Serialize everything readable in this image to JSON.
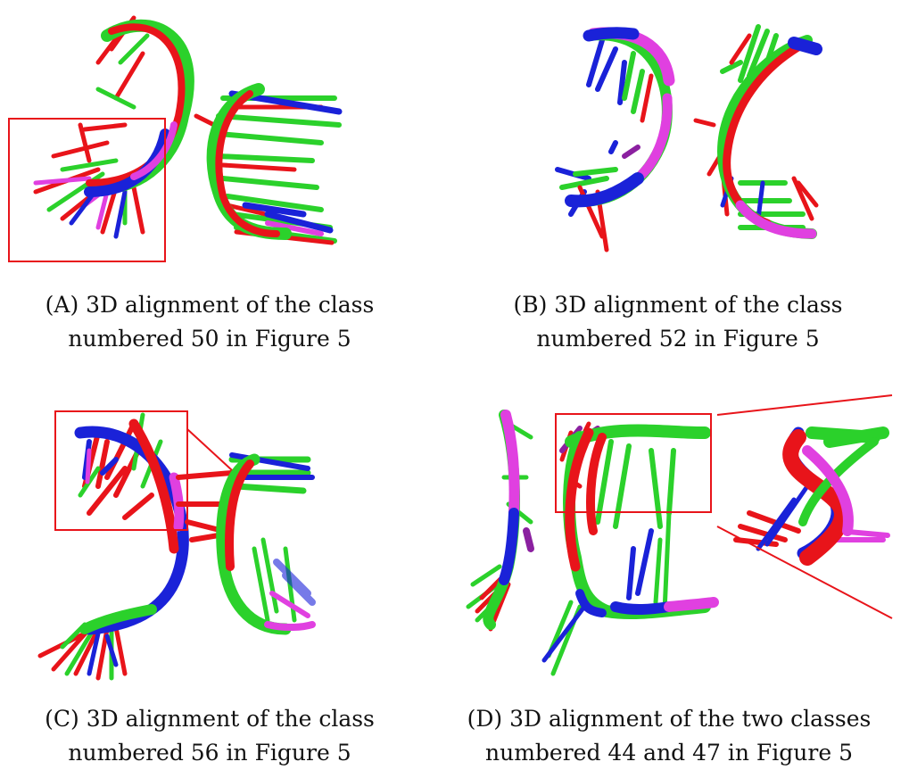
{
  "figure": {
    "panels": [
      {
        "id": "A",
        "caption_line1": "(A) 3D alignment of the class",
        "caption_line2": "numbered 50 in Figure 5"
      },
      {
        "id": "B",
        "caption_line1": "(B) 3D alignment of the class",
        "caption_line2": "numbered 52 in Figure 5"
      },
      {
        "id": "C",
        "caption_line1": "(C) 3D alignment of the class",
        "caption_line2": "numbered 56 in Figure 5"
      },
      {
        "id": "D",
        "caption_line1": "(D) 3D alignment of the two classes",
        "caption_line2": "numbered 44 and 47 in Figure 5"
      }
    ],
    "colors": {
      "red": "#e8141a",
      "green": "#2bd12b",
      "blue": "#1a22d8",
      "magenta": "#e040e0",
      "highlight_box": "#e8141a"
    }
  }
}
